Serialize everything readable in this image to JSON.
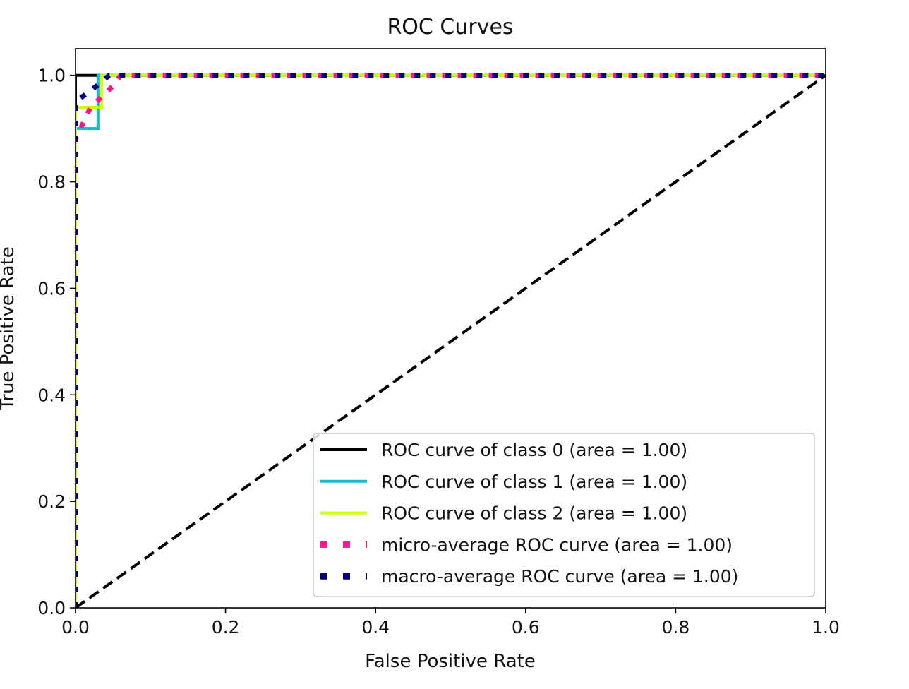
{
  "chart_data": {
    "type": "line",
    "title": "ROC Curves",
    "xlabel": "False Positive Rate",
    "ylabel": "True Positive Rate",
    "xlim": [
      0.0,
      1.0
    ],
    "ylim": [
      0.0,
      1.05
    ],
    "xticks": [
      "0.0",
      "0.2",
      "0.4",
      "0.6",
      "0.8",
      "1.0"
    ],
    "yticks": [
      "0.0",
      "0.2",
      "0.4",
      "0.6",
      "0.8",
      "1.0"
    ],
    "grid": false,
    "legend_position": "lower-right",
    "series": [
      {
        "name": "ROC curve of class 0 (area = 1.00)",
        "color": "#000000",
        "style": "solid",
        "points": [
          [
            0.0,
            0.0
          ],
          [
            0.0,
            1.0
          ],
          [
            1.0,
            1.0
          ]
        ]
      },
      {
        "name": "ROC curve of class 1 (area = 1.00)",
        "color": "#17becf",
        "style": "solid",
        "points": [
          [
            0.0,
            0.0
          ],
          [
            0.0,
            0.9
          ],
          [
            0.03,
            0.9
          ],
          [
            0.03,
            1.0
          ],
          [
            1.0,
            1.0
          ]
        ]
      },
      {
        "name": "ROC curve of class 2 (area = 1.00)",
        "color": "#ccff00",
        "style": "solid",
        "points": [
          [
            0.0,
            0.0
          ],
          [
            0.0,
            0.94
          ],
          [
            0.035,
            0.94
          ],
          [
            0.035,
            1.0
          ],
          [
            1.0,
            1.0
          ]
        ]
      },
      {
        "name": "micro-average ROC curve (area = 1.00)",
        "color": "#ff1493",
        "style": "dotted",
        "points": [
          [
            0.0,
            0.0
          ],
          [
            0.0,
            0.88
          ],
          [
            0.01,
            0.91
          ],
          [
            0.02,
            0.94
          ],
          [
            0.035,
            0.96
          ],
          [
            0.05,
            0.98
          ],
          [
            0.06,
            1.0
          ],
          [
            1.0,
            1.0
          ]
        ]
      },
      {
        "name": "macro-average ROC curve (area = 1.00)",
        "color": "#000080",
        "style": "dotted",
        "points": [
          [
            0.0,
            0.0
          ],
          [
            0.0,
            0.95
          ],
          [
            0.028,
            0.98
          ],
          [
            0.045,
            1.0
          ],
          [
            1.0,
            1.0
          ]
        ]
      }
    ],
    "reference_line": {
      "color": "#000000",
      "style": "dashed",
      "points": [
        [
          0.0,
          0.0
        ],
        [
          1.0,
          1.0
        ]
      ]
    }
  }
}
